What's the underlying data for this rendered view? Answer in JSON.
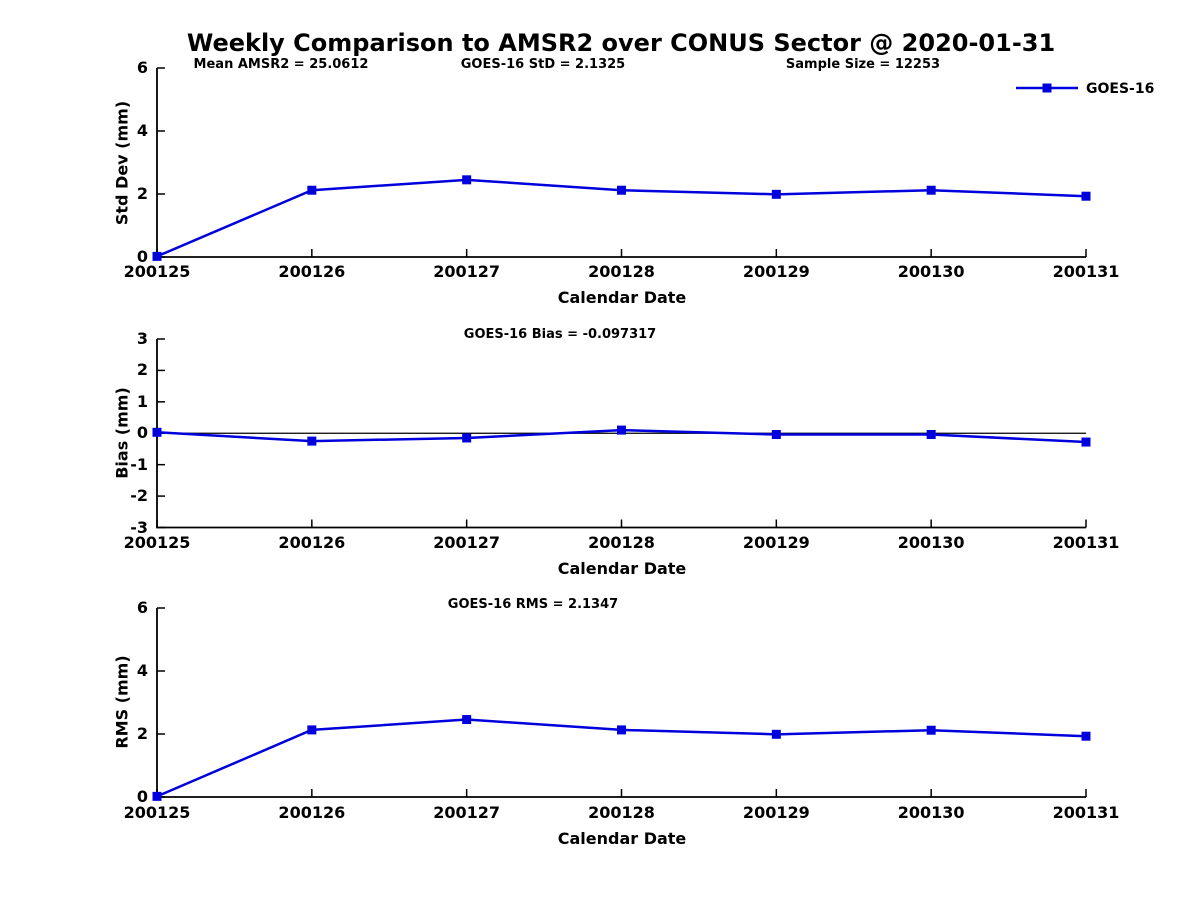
{
  "title": "Weekly Comparison to AMSR2 over CONUS Sector @ 2020-01-31",
  "legend": {
    "label": "GOES-16"
  },
  "colors": {
    "series": "#0000dd",
    "axis": "#000000",
    "text": "#000000"
  },
  "chart_data": [
    {
      "type": "line",
      "series_name": "GOES-16",
      "ylabel": "Std Dev (mm)",
      "xlabel": "Calendar Date",
      "annotations": [
        "Mean AMSR2 = 25.0612",
        "GOES-16 StD = 2.1325",
        "Sample Size = 12253"
      ],
      "categories": [
        "200125",
        "200126",
        "200127",
        "200128",
        "200129",
        "200130",
        "200131"
      ],
      "values": [
        0.02,
        2.12,
        2.45,
        2.12,
        1.99,
        2.12,
        1.93
      ],
      "ylim": [
        0,
        6
      ],
      "yticks": [
        0,
        2,
        4,
        6
      ],
      "zero_line": false,
      "grid": false,
      "legend_position": "top-right"
    },
    {
      "type": "line",
      "series_name": "GOES-16",
      "ylabel": "Bias (mm)",
      "xlabel": "Calendar Date",
      "annotations": [
        "GOES-16 Bias  = -0.097317"
      ],
      "categories": [
        "200125",
        "200126",
        "200127",
        "200128",
        "200129",
        "200130",
        "200131"
      ],
      "values": [
        0.03,
        -0.25,
        -0.15,
        0.1,
        -0.04,
        -0.04,
        -0.28
      ],
      "ylim": [
        -3,
        3
      ],
      "yticks": [
        -3,
        -2,
        -1,
        0,
        1,
        2,
        3
      ],
      "zero_line": true,
      "grid": false
    },
    {
      "type": "line",
      "series_name": "GOES-16",
      "ylabel": "RMS (mm)",
      "xlabel": "Calendar Date",
      "annotations": [
        "GOES-16 RMS = 2.1347"
      ],
      "categories": [
        "200125",
        "200126",
        "200127",
        "200128",
        "200129",
        "200130",
        "200131"
      ],
      "values": [
        0.02,
        2.13,
        2.46,
        2.13,
        1.99,
        2.12,
        1.93
      ],
      "ylim": [
        0,
        6
      ],
      "yticks": [
        0,
        2,
        4,
        6
      ],
      "zero_line": false,
      "grid": false
    }
  ]
}
